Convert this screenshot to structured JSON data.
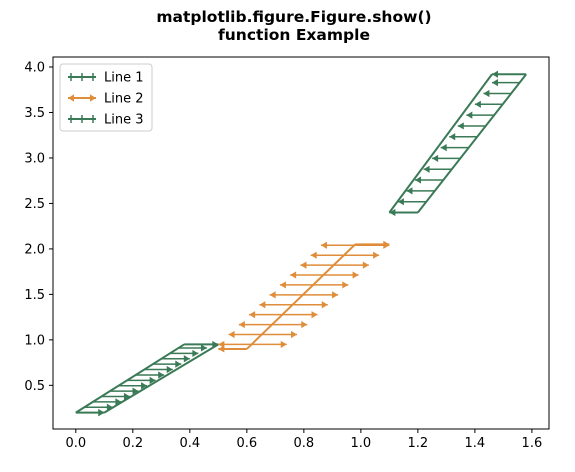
{
  "chart_data": {
    "type": "line",
    "title_lines": [
      "matplotlib.figure.Figure.show()",
      "function Example"
    ],
    "xlim": [
      -0.08,
      1.66
    ],
    "ylim": [
      0.02,
      4.11
    ],
    "xticks": [
      0.0,
      0.2,
      0.4,
      0.6,
      0.8,
      1.0,
      1.2,
      1.4,
      1.6
    ],
    "xtick_labels": [
      "0.0",
      "0.2",
      "0.4",
      "0.6",
      "0.8",
      "1.0",
      "1.2",
      "1.4",
      "1.6"
    ],
    "yticks": [
      0.5,
      1.0,
      1.5,
      2.0,
      2.5,
      3.0,
      3.5,
      4.0
    ],
    "ytick_labels": [
      "0.5",
      "1.0",
      "1.5",
      "2.0",
      "2.5",
      "3.0",
      "3.5",
      "4.0"
    ],
    "legend_position": "upper-left",
    "series": [
      {
        "name": "Line 1",
        "color": "#3b7a57",
        "arrow": "right",
        "segment_start": [
          0.0,
          0.2
        ],
        "segment_end": [
          0.38,
          0.95
        ],
        "x_shift": 0.1,
        "x": [
          0.0,
          0.03,
          0.06,
          0.09,
          0.12,
          0.15,
          0.18,
          0.21,
          0.24,
          0.27,
          0.3,
          0.33,
          0.36
        ],
        "y": [
          0.2,
          0.259,
          0.318,
          0.378,
          0.437,
          0.496,
          0.555,
          0.614,
          0.674,
          0.733,
          0.792,
          0.851,
          0.911
        ],
        "arrow_tips": [
          0.1,
          0.13,
          0.16,
          0.19,
          0.22,
          0.25,
          0.28,
          0.31,
          0.34,
          0.37,
          0.4,
          0.43,
          0.46
        ],
        "arrow_heads": [
          [
            0.1,
            0.2
          ],
          [
            0.38,
            0.55
          ],
          [
            0.5,
            0.95
          ]
        ]
      },
      {
        "name": "Line 2",
        "color": "#df8d3a",
        "arrow": "both",
        "segment_start": [
          0.6,
          0.9
        ],
        "segment_end": [
          0.98,
          2.05
        ],
        "x_shift": 0.1,
        "x": [
          0.6,
          0.636,
          0.672,
          0.708,
          0.744,
          0.78,
          0.816,
          0.852,
          0.888,
          0.924,
          0.96
        ],
        "y": [
          0.95,
          1.059,
          1.168,
          1.277,
          1.386,
          1.495,
          1.604,
          1.713,
          1.822,
          1.931,
          2.04
        ],
        "arrow_left": [
          0.5,
          0.536,
          0.572,
          0.608,
          0.644,
          0.68,
          0.716,
          0.752,
          0.788,
          0.824,
          0.86
        ],
        "arrow_right": [
          0.74,
          0.776,
          0.812,
          0.848,
          0.884,
          0.92,
          0.956,
          0.992,
          1.028,
          1.064,
          1.1
        ],
        "arrow_heads": [
          [
            0.5,
            0.9
          ],
          [
            0.6,
            0.9
          ],
          [
            0.98,
            2.05
          ],
          [
            1.1,
            2.05
          ]
        ]
      },
      {
        "name": "Line 3",
        "color": "#3b7a57",
        "arrow": "left",
        "segment_start": [
          1.2,
          2.4
        ],
        "segment_end": [
          1.58,
          3.92
        ],
        "x_shift": 0.1,
        "x": [
          1.1,
          1.13,
          1.16,
          1.19,
          1.22,
          1.25,
          1.28,
          1.31,
          1.34,
          1.37,
          1.4,
          1.43,
          1.46
        ],
        "y": [
          2.4,
          2.519,
          2.638,
          2.757,
          2.876,
          2.995,
          3.114,
          3.233,
          3.352,
          3.471,
          3.59,
          3.709,
          3.828
        ],
        "arrow_tips": [
          1.1,
          1.13,
          1.16,
          1.19,
          1.22,
          1.25,
          1.28,
          1.31,
          1.34,
          1.37,
          1.4,
          1.43,
          1.46
        ],
        "arrow_heads": [
          [
            1.1,
            2.4
          ],
          [
            1.46,
            3.92
          ]
        ]
      }
    ]
  }
}
